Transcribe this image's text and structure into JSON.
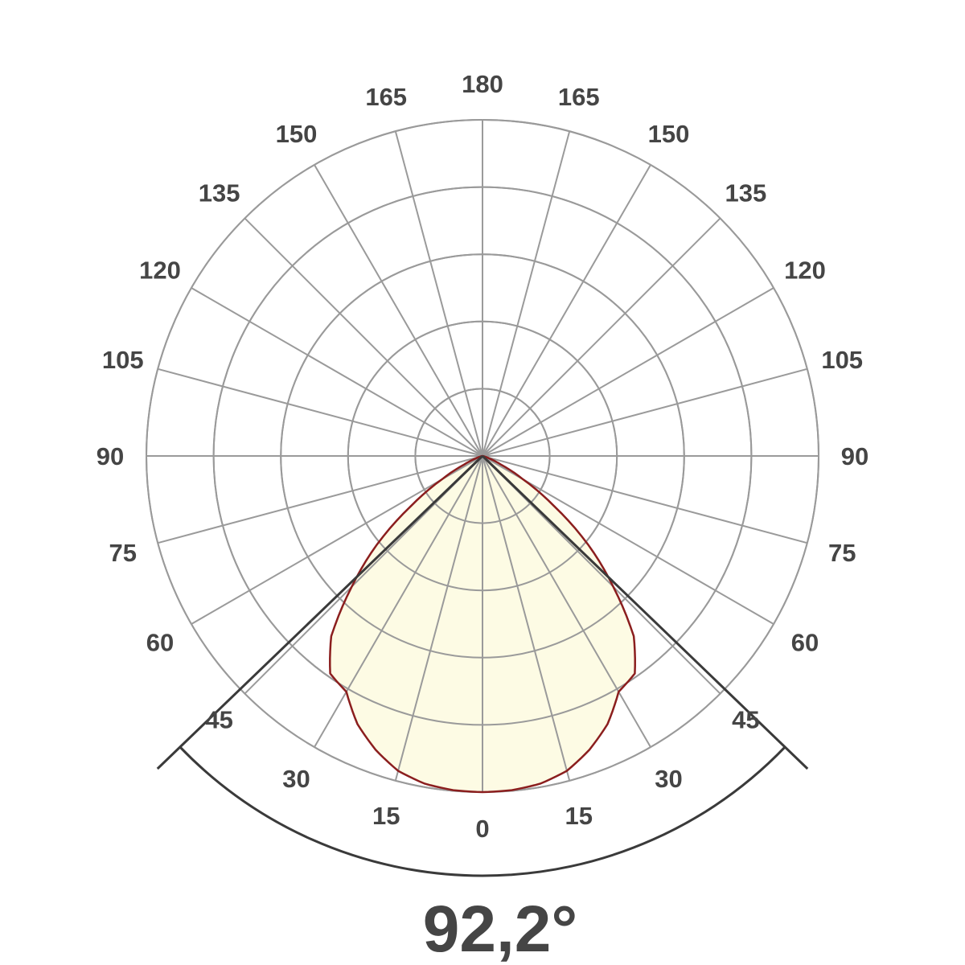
{
  "chart_data": {
    "type": "polar",
    "title": "",
    "beam_angle_label": "92,2°",
    "beam_angle_deg": 92.2,
    "angle_tick_labels": [
      "0",
      "15",
      "30",
      "45",
      "60",
      "75",
      "90",
      "105",
      "120",
      "135",
      "150",
      "165",
      "180"
    ],
    "angle_step_deg": 15,
    "radial_rings": 5,
    "radial_max": 1.0,
    "grid": true,
    "series": [
      {
        "symmetric": true,
        "angles_deg": [
          0,
          5,
          10,
          15,
          20,
          25,
          30,
          35,
          40,
          45,
          50,
          55,
          60,
          65,
          70,
          75,
          80,
          90
        ],
        "relative_intensity": [
          1.0,
          0.998,
          0.99,
          0.97,
          0.93,
          0.88,
          0.81,
          0.79,
          0.7,
          0.55,
          0.41,
          0.26,
          0.14,
          0.06,
          0.02,
          0.005,
          0,
          0
        ]
      }
    ],
    "colors": {
      "grid": "#9a9a9a",
      "curve_stroke": "#8b1e1e",
      "curve_fill": "#fdfbe4",
      "beam_lines": "#3a3a3a",
      "text": "#454545"
    }
  }
}
